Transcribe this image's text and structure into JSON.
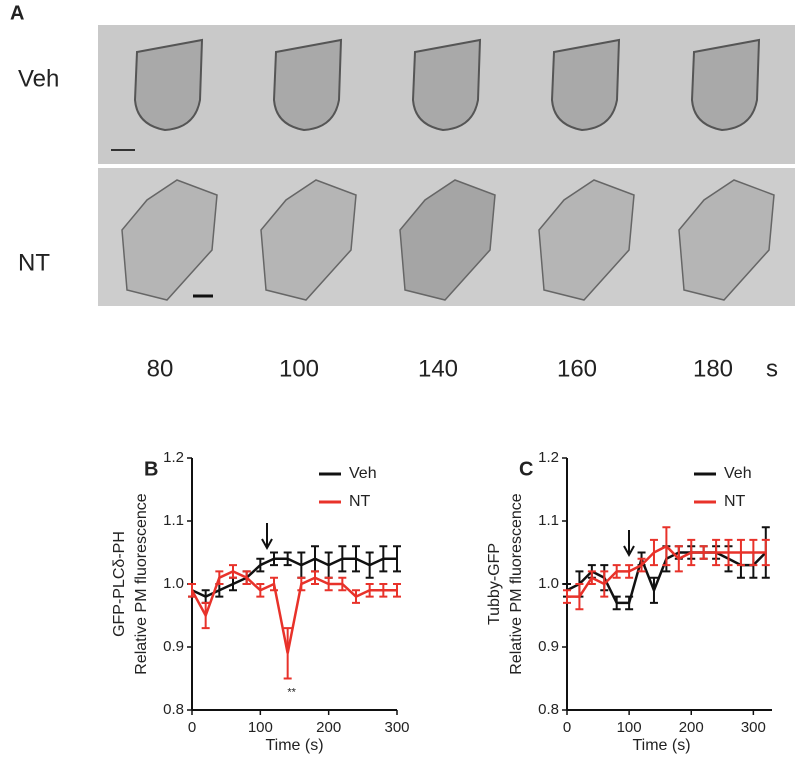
{
  "figure": {
    "panel_a": {
      "label": "A",
      "rows": [
        "Veh",
        "NT"
      ],
      "times": [
        "80",
        "100",
        "140",
        "160",
        "180"
      ],
      "unit": "s"
    }
  },
  "chart_data": [
    {
      "type": "line",
      "panel_label": "B",
      "y_label": [
        "GFP-PLCδ-PH",
        "Relative PM fluorescence"
      ],
      "x_label": "Time (s)",
      "annotation": "**",
      "x": [
        0,
        20,
        40,
        60,
        80,
        100,
        120,
        140,
        160,
        180,
        200,
        220,
        240,
        260,
        280,
        300
      ],
      "series": [
        {
          "name": "Veh",
          "color": "#111111",
          "values": [
            0.99,
            0.98,
            0.99,
            1.0,
            1.01,
            1.03,
            1.04,
            1.04,
            1.03,
            1.04,
            1.03,
            1.04,
            1.04,
            1.03,
            1.04,
            1.04
          ],
          "errors": [
            0.01,
            0.01,
            0.01,
            0.01,
            0.01,
            0.01,
            0.01,
            0.01,
            0.02,
            0.02,
            0.02,
            0.02,
            0.02,
            0.02,
            0.02,
            0.02
          ]
        },
        {
          "name": "NT",
          "color": "#e8322a",
          "values": [
            0.99,
            0.95,
            1.01,
            1.02,
            1.01,
            0.99,
            1.0,
            0.89,
            1.0,
            1.01,
            1.0,
            1.0,
            0.98,
            0.99,
            0.99,
            0.99
          ],
          "errors": [
            0.01,
            0.02,
            0.01,
            0.01,
            0.01,
            0.01,
            0.01,
            0.04,
            0.01,
            0.01,
            0.01,
            0.01,
            0.01,
            0.01,
            0.01,
            0.01
          ]
        }
      ],
      "xlim": [
        0,
        300
      ],
      "xticks": [
        0,
        100,
        200,
        300
      ],
      "ylim": [
        0.8,
        1.2
      ],
      "yticks": [
        0.8,
        0.9,
        {
          "value": 1,
          "label": "1.0"
        },
        1.1,
        1.2
      ],
      "legend": "upper right"
    },
    {
      "type": "line",
      "panel_label": "C",
      "y_label": [
        "Tubby-GFP",
        "Relative PM fluorescence"
      ],
      "x_label": "Time (s)",
      "x": [
        0,
        20,
        40,
        60,
        80,
        100,
        120,
        140,
        160,
        180,
        200,
        220,
        240,
        260,
        280,
        300,
        320
      ],
      "series": [
        {
          "name": "Veh",
          "color": "#111111",
          "values": [
            0.99,
            1.0,
            1.02,
            1.01,
            0.97,
            0.97,
            1.04,
            0.99,
            1.04,
            1.05,
            1.05,
            1.05,
            1.05,
            1.04,
            1.03,
            1.03,
            1.05
          ],
          "errors": [
            0.01,
            0.02,
            0.01,
            0.02,
            0.01,
            0.01,
            0.01,
            0.02,
            0.02,
            0.01,
            0.01,
            0.01,
            0.01,
            0.02,
            0.02,
            0.02,
            0.04
          ]
        },
        {
          "name": "NT",
          "color": "#e8322a",
          "values": [
            0.98,
            0.98,
            1.01,
            1.0,
            1.02,
            1.02,
            1.03,
            1.05,
            1.06,
            1.04,
            1.05,
            1.05,
            1.05,
            1.05,
            1.05,
            1.05,
            1.05
          ],
          "errors": [
            0.01,
            0.02,
            0.01,
            0.02,
            0.01,
            0.01,
            0.01,
            0.02,
            0.03,
            0.02,
            0.02,
            0.01,
            0.02,
            0.02,
            0.02,
            0.02,
            0.02
          ]
        }
      ],
      "xlim": [
        0,
        330
      ],
      "xticks": [
        0,
        100,
        200,
        300
      ],
      "ylim": [
        0.8,
        1.2
      ],
      "yticks": [
        0.8,
        0.9,
        {
          "value": 1,
          "label": "1.0"
        },
        1.1,
        1.2
      ],
      "legend": "upper right"
    }
  ]
}
